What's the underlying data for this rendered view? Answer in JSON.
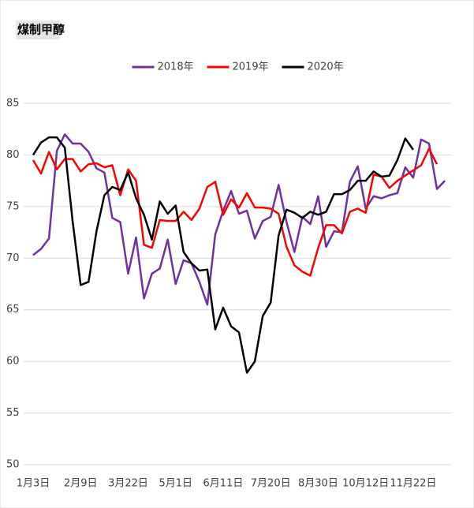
{
  "chart_data": {
    "type": "line",
    "title": "煤制甲醇",
    "categories": [
      "1月3日",
      null,
      null,
      null,
      null,
      null,
      "2月9日",
      null,
      null,
      null,
      null,
      null,
      "3月22日",
      null,
      null,
      null,
      null,
      null,
      "5月1日",
      null,
      null,
      null,
      null,
      null,
      "6月11日",
      null,
      null,
      null,
      null,
      null,
      "7月20日",
      null,
      null,
      null,
      null,
      null,
      "8月30日",
      null,
      null,
      null,
      null,
      null,
      "10月12日",
      null,
      null,
      null,
      null,
      null,
      "11月22日",
      null,
      null,
      null,
      null
    ],
    "series": [
      {
        "name": "2018年",
        "color": "#7030a0",
        "values": [
          70.3,
          70.9,
          71.9,
          80.4,
          82.0,
          81.1,
          81.1,
          80.3,
          78.7,
          78.3,
          73.9,
          73.5,
          68.5,
          72.0,
          66.1,
          68.5,
          69.0,
          71.8,
          67.5,
          69.8,
          69.5,
          67.7,
          65.5,
          72.3,
          74.6,
          76.5,
          74.3,
          74.6,
          71.9,
          73.6,
          74.0,
          77.1,
          73.5,
          70.6,
          74.0,
          73.3,
          76.0,
          71.1,
          72.6,
          72.5,
          77.4,
          78.9,
          74.8,
          76.0,
          75.8,
          76.1,
          76.3,
          78.8,
          77.8,
          81.5,
          81.1,
          76.7,
          77.5
        ]
      },
      {
        "name": "2019年",
        "color": "#ff0000",
        "values": [
          79.5,
          78.2,
          80.3,
          78.6,
          79.6,
          79.6,
          78.4,
          79.1,
          79.2,
          78.8,
          79.0,
          76.1,
          78.6,
          77.5,
          71.3,
          71.0,
          73.7,
          73.6,
          73.6,
          74.5,
          73.7,
          74.8,
          76.9,
          77.4,
          74.2,
          75.7,
          74.9,
          76.3,
          74.9,
          74.9,
          74.8,
          74.3,
          71.1,
          69.3,
          68.7,
          68.3,
          71.0,
          73.2,
          73.2,
          72.4,
          74.5,
          74.8,
          74.4,
          78.1,
          77.9,
          76.8,
          77.5,
          78.0,
          78.5,
          79.0,
          80.6,
          79.1,
          null
        ]
      },
      {
        "name": "2020年",
        "color": "#000000",
        "values": [
          80.0,
          81.2,
          81.7,
          81.7,
          80.7,
          73.5,
          67.4,
          67.7,
          72.6,
          76.1,
          76.9,
          76.6,
          78.3,
          75.8,
          74.2,
          71.8,
          75.5,
          74.3,
          75.1,
          70.6,
          69.5,
          68.8,
          68.9,
          63.1,
          65.2,
          63.4,
          62.8,
          58.9,
          60.0,
          64.4,
          65.7,
          72.2,
          74.7,
          74.4,
          73.9,
          74.5,
          74.2,
          74.5,
          76.2,
          76.2,
          76.6,
          77.5,
          77.5,
          78.4,
          77.9,
          78.0,
          79.5,
          81.6,
          80.5,
          null,
          null,
          null,
          null
        ]
      }
    ],
    "ylim": [
      50,
      85
    ],
    "yticks": [
      50,
      55,
      60,
      65,
      70,
      75,
      80,
      85
    ],
    "grid": true,
    "legend": "top"
  }
}
